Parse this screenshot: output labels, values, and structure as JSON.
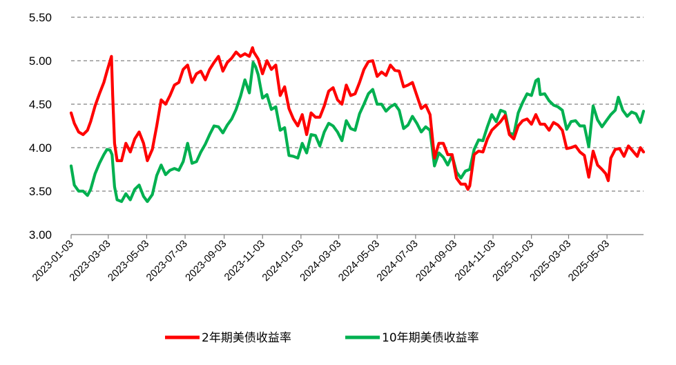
{
  "chart_data": {
    "type": "line",
    "title": "",
    "xlabel": "",
    "ylabel": "",
    "ylim": [
      3.0,
      5.5
    ],
    "y_ticks": [
      "3.00",
      "3.50",
      "4.00",
      "4.50",
      "5.00",
      "5.50"
    ],
    "x_ticks": [
      "2023-01-03",
      "2023-03-03",
      "2023-05-03",
      "2023-07-03",
      "2023-09-03",
      "2023-11-03",
      "2024-01-03",
      "2024-03-03",
      "2024-05-03",
      "2024-07-03",
      "2024-09-03",
      "2024-11-03",
      "2025-01-03",
      "2025-03-03",
      "2025-05-03"
    ],
    "x_range": [
      "2023-01-03",
      "2025-06-30"
    ],
    "grid": "horizontal dashed",
    "legend_position": "bottom-center",
    "series": [
      {
        "name": "2年期美债收益率",
        "color": "#ff0000",
        "points": [
          [
            "2023-01-03",
            4.4
          ],
          [
            "2023-01-08",
            4.28
          ],
          [
            "2023-01-15",
            4.18
          ],
          [
            "2023-01-22",
            4.15
          ],
          [
            "2023-01-29",
            4.2
          ],
          [
            "2023-02-03",
            4.3
          ],
          [
            "2023-02-10",
            4.48
          ],
          [
            "2023-02-17",
            4.62
          ],
          [
            "2023-02-24",
            4.75
          ],
          [
            "2023-03-01",
            4.88
          ],
          [
            "2023-03-06",
            5.0
          ],
          [
            "2023-03-08",
            5.05
          ],
          [
            "2023-03-10",
            4.6
          ],
          [
            "2023-03-13",
            4.05
          ],
          [
            "2023-03-17",
            3.85
          ],
          [
            "2023-03-24",
            3.85
          ],
          [
            "2023-03-31",
            4.05
          ],
          [
            "2023-04-07",
            3.95
          ],
          [
            "2023-04-14",
            4.1
          ],
          [
            "2023-04-21",
            4.18
          ],
          [
            "2023-04-28",
            4.05
          ],
          [
            "2023-05-04",
            3.85
          ],
          [
            "2023-05-12",
            3.98
          ],
          [
            "2023-05-19",
            4.25
          ],
          [
            "2023-05-26",
            4.55
          ],
          [
            "2023-06-02",
            4.5
          ],
          [
            "2023-06-09",
            4.6
          ],
          [
            "2023-06-16",
            4.72
          ],
          [
            "2023-06-23",
            4.75
          ],
          [
            "2023-06-30",
            4.9
          ],
          [
            "2023-07-07",
            4.95
          ],
          [
            "2023-07-14",
            4.75
          ],
          [
            "2023-07-21",
            4.85
          ],
          [
            "2023-07-28",
            4.88
          ],
          [
            "2023-08-04",
            4.78
          ],
          [
            "2023-08-11",
            4.9
          ],
          [
            "2023-08-18",
            4.98
          ],
          [
            "2023-08-25",
            5.05
          ],
          [
            "2023-09-01",
            4.88
          ],
          [
            "2023-09-08",
            4.98
          ],
          [
            "2023-09-15",
            5.03
          ],
          [
            "2023-09-22",
            5.1
          ],
          [
            "2023-09-29",
            5.05
          ],
          [
            "2023-10-06",
            5.08
          ],
          [
            "2023-10-13",
            5.05
          ],
          [
            "2023-10-18",
            5.15
          ],
          [
            "2023-10-20",
            5.1
          ],
          [
            "2023-10-27",
            5.02
          ],
          [
            "2023-11-03",
            4.85
          ],
          [
            "2023-11-10",
            5.0
          ],
          [
            "2023-11-17",
            4.9
          ],
          [
            "2023-11-24",
            4.95
          ],
          [
            "2023-12-01",
            4.6
          ],
          [
            "2023-12-08",
            4.7
          ],
          [
            "2023-12-15",
            4.45
          ],
          [
            "2023-12-22",
            4.33
          ],
          [
            "2023-12-29",
            4.25
          ],
          [
            "2024-01-05",
            4.38
          ],
          [
            "2024-01-12",
            4.15
          ],
          [
            "2024-01-19",
            4.4
          ],
          [
            "2024-01-26",
            4.35
          ],
          [
            "2024-02-02",
            4.35
          ],
          [
            "2024-02-09",
            4.48
          ],
          [
            "2024-02-16",
            4.65
          ],
          [
            "2024-02-23",
            4.69
          ],
          [
            "2024-03-01",
            4.55
          ],
          [
            "2024-03-08",
            4.5
          ],
          [
            "2024-03-15",
            4.72
          ],
          [
            "2024-03-22",
            4.6
          ],
          [
            "2024-03-29",
            4.62
          ],
          [
            "2024-04-05",
            4.75
          ],
          [
            "2024-04-12",
            4.9
          ],
          [
            "2024-04-19",
            4.99
          ],
          [
            "2024-04-26",
            5.0
          ],
          [
            "2024-05-03",
            4.82
          ],
          [
            "2024-05-10",
            4.87
          ],
          [
            "2024-05-17",
            4.83
          ],
          [
            "2024-05-24",
            4.95
          ],
          [
            "2024-05-31",
            4.89
          ],
          [
            "2024-06-07",
            4.88
          ],
          [
            "2024-06-14",
            4.7
          ],
          [
            "2024-06-21",
            4.72
          ],
          [
            "2024-06-28",
            4.75
          ],
          [
            "2024-07-05",
            4.6
          ],
          [
            "2024-07-12",
            4.45
          ],
          [
            "2024-07-19",
            4.49
          ],
          [
            "2024-07-26",
            4.38
          ],
          [
            "2024-08-02",
            3.88
          ],
          [
            "2024-08-09",
            4.05
          ],
          [
            "2024-08-16",
            4.05
          ],
          [
            "2024-08-23",
            3.92
          ],
          [
            "2024-08-30",
            3.92
          ],
          [
            "2024-09-06",
            3.65
          ],
          [
            "2024-09-13",
            3.58
          ],
          [
            "2024-09-20",
            3.58
          ],
          [
            "2024-09-24",
            3.52
          ],
          [
            "2024-09-27",
            3.56
          ],
          [
            "2024-10-04",
            3.92
          ],
          [
            "2024-10-11",
            3.96
          ],
          [
            "2024-10-18",
            3.95
          ],
          [
            "2024-10-25",
            4.1
          ],
          [
            "2024-11-01",
            4.2
          ],
          [
            "2024-11-08",
            4.25
          ],
          [
            "2024-11-15",
            4.3
          ],
          [
            "2024-11-22",
            4.37
          ],
          [
            "2024-11-29",
            4.15
          ],
          [
            "2024-12-06",
            4.1
          ],
          [
            "2024-12-13",
            4.25
          ],
          [
            "2024-12-20",
            4.31
          ],
          [
            "2024-12-27",
            4.33
          ],
          [
            "2025-01-03",
            4.27
          ],
          [
            "2025-01-10",
            4.38
          ],
          [
            "2025-01-17",
            4.27
          ],
          [
            "2025-01-24",
            4.27
          ],
          [
            "2025-01-31",
            4.2
          ],
          [
            "2025-02-07",
            4.29
          ],
          [
            "2025-02-14",
            4.26
          ],
          [
            "2025-02-21",
            4.2
          ],
          [
            "2025-02-28",
            3.99
          ],
          [
            "2025-03-07",
            4.0
          ],
          [
            "2025-03-14",
            4.02
          ],
          [
            "2025-03-21",
            3.95
          ],
          [
            "2025-03-28",
            3.91
          ],
          [
            "2025-04-04",
            3.66
          ],
          [
            "2025-04-11",
            3.96
          ],
          [
            "2025-04-18",
            3.8
          ],
          [
            "2025-04-25",
            3.75
          ],
          [
            "2025-05-01",
            3.7
          ],
          [
            "2025-05-05",
            3.62
          ],
          [
            "2025-05-09",
            3.88
          ],
          [
            "2025-05-16",
            3.98
          ],
          [
            "2025-05-23",
            3.99
          ],
          [
            "2025-05-30",
            3.9
          ],
          [
            "2025-06-06",
            4.02
          ],
          [
            "2025-06-13",
            3.96
          ],
          [
            "2025-06-20",
            3.9
          ],
          [
            "2025-06-25",
            4.0
          ],
          [
            "2025-06-30",
            3.95
          ]
        ]
      },
      {
        "name": "10年期美债收益率",
        "color": "#00b050",
        "points": [
          [
            "2023-01-03",
            3.79
          ],
          [
            "2023-01-08",
            3.57
          ],
          [
            "2023-01-15",
            3.5
          ],
          [
            "2023-01-22",
            3.5
          ],
          [
            "2023-01-29",
            3.45
          ],
          [
            "2023-02-03",
            3.52
          ],
          [
            "2023-02-10",
            3.7
          ],
          [
            "2023-02-17",
            3.82
          ],
          [
            "2023-02-24",
            3.92
          ],
          [
            "2023-03-01",
            3.98
          ],
          [
            "2023-03-06",
            3.97
          ],
          [
            "2023-03-09",
            3.92
          ],
          [
            "2023-03-13",
            3.55
          ],
          [
            "2023-03-17",
            3.4
          ],
          [
            "2023-03-24",
            3.38
          ],
          [
            "2023-03-31",
            3.47
          ],
          [
            "2023-04-07",
            3.4
          ],
          [
            "2023-04-14",
            3.52
          ],
          [
            "2023-04-21",
            3.57
          ],
          [
            "2023-04-28",
            3.44
          ],
          [
            "2023-05-04",
            3.38
          ],
          [
            "2023-05-12",
            3.46
          ],
          [
            "2023-05-19",
            3.68
          ],
          [
            "2023-05-26",
            3.8
          ],
          [
            "2023-06-02",
            3.69
          ],
          [
            "2023-06-09",
            3.74
          ],
          [
            "2023-06-16",
            3.76
          ],
          [
            "2023-06-23",
            3.74
          ],
          [
            "2023-06-30",
            3.84
          ],
          [
            "2023-07-07",
            4.05
          ],
          [
            "2023-07-14",
            3.82
          ],
          [
            "2023-07-21",
            3.84
          ],
          [
            "2023-07-28",
            3.95
          ],
          [
            "2023-08-04",
            4.04
          ],
          [
            "2023-08-11",
            4.15
          ],
          [
            "2023-08-18",
            4.25
          ],
          [
            "2023-08-25",
            4.24
          ],
          [
            "2023-09-01",
            4.17
          ],
          [
            "2023-09-08",
            4.26
          ],
          [
            "2023-09-15",
            4.33
          ],
          [
            "2023-09-22",
            4.44
          ],
          [
            "2023-09-29",
            4.59
          ],
          [
            "2023-10-06",
            4.78
          ],
          [
            "2023-10-13",
            4.63
          ],
          [
            "2023-10-19",
            4.98
          ],
          [
            "2023-10-23",
            4.93
          ],
          [
            "2023-10-27",
            4.84
          ],
          [
            "2023-11-03",
            4.57
          ],
          [
            "2023-11-10",
            4.61
          ],
          [
            "2023-11-17",
            4.44
          ],
          [
            "2023-11-24",
            4.47
          ],
          [
            "2023-12-01",
            4.2
          ],
          [
            "2023-12-08",
            4.23
          ],
          [
            "2023-12-15",
            3.91
          ],
          [
            "2023-12-22",
            3.9
          ],
          [
            "2023-12-29",
            3.88
          ],
          [
            "2024-01-05",
            4.05
          ],
          [
            "2024-01-12",
            3.94
          ],
          [
            "2024-01-19",
            4.15
          ],
          [
            "2024-01-26",
            4.14
          ],
          [
            "2024-02-02",
            4.02
          ],
          [
            "2024-02-09",
            4.18
          ],
          [
            "2024-02-16",
            4.28
          ],
          [
            "2024-02-23",
            4.25
          ],
          [
            "2024-03-01",
            4.18
          ],
          [
            "2024-03-08",
            4.08
          ],
          [
            "2024-03-15",
            4.31
          ],
          [
            "2024-03-22",
            4.22
          ],
          [
            "2024-03-29",
            4.2
          ],
          [
            "2024-04-05",
            4.39
          ],
          [
            "2024-04-12",
            4.5
          ],
          [
            "2024-04-19",
            4.62
          ],
          [
            "2024-04-26",
            4.67
          ],
          [
            "2024-05-03",
            4.5
          ],
          [
            "2024-05-10",
            4.5
          ],
          [
            "2024-05-17",
            4.42
          ],
          [
            "2024-05-24",
            4.47
          ],
          [
            "2024-05-31",
            4.5
          ],
          [
            "2024-06-07",
            4.43
          ],
          [
            "2024-06-14",
            4.22
          ],
          [
            "2024-06-21",
            4.26
          ],
          [
            "2024-06-28",
            4.36
          ],
          [
            "2024-07-05",
            4.28
          ],
          [
            "2024-07-12",
            4.18
          ],
          [
            "2024-07-19",
            4.24
          ],
          [
            "2024-07-26",
            4.2
          ],
          [
            "2024-08-02",
            3.79
          ],
          [
            "2024-08-09",
            3.94
          ],
          [
            "2024-08-16",
            3.89
          ],
          [
            "2024-08-23",
            3.8
          ],
          [
            "2024-08-30",
            3.91
          ],
          [
            "2024-09-06",
            3.72
          ],
          [
            "2024-09-13",
            3.65
          ],
          [
            "2024-09-20",
            3.73
          ],
          [
            "2024-09-27",
            3.75
          ],
          [
            "2024-10-04",
            3.98
          ],
          [
            "2024-10-11",
            4.09
          ],
          [
            "2024-10-18",
            4.08
          ],
          [
            "2024-10-25",
            4.24
          ],
          [
            "2024-11-01",
            4.38
          ],
          [
            "2024-11-08",
            4.3
          ],
          [
            "2024-11-15",
            4.43
          ],
          [
            "2024-11-22",
            4.41
          ],
          [
            "2024-11-29",
            4.17
          ],
          [
            "2024-12-06",
            4.15
          ],
          [
            "2024-12-13",
            4.4
          ],
          [
            "2024-12-20",
            4.52
          ],
          [
            "2024-12-27",
            4.62
          ],
          [
            "2025-01-03",
            4.6
          ],
          [
            "2025-01-10",
            4.77
          ],
          [
            "2025-01-14",
            4.79
          ],
          [
            "2025-01-17",
            4.61
          ],
          [
            "2025-01-24",
            4.62
          ],
          [
            "2025-01-31",
            4.54
          ],
          [
            "2025-02-07",
            4.49
          ],
          [
            "2025-02-14",
            4.47
          ],
          [
            "2025-02-21",
            4.43
          ],
          [
            "2025-02-28",
            4.21
          ],
          [
            "2025-03-07",
            4.3
          ],
          [
            "2025-03-14",
            4.31
          ],
          [
            "2025-03-21",
            4.25
          ],
          [
            "2025-03-28",
            4.25
          ],
          [
            "2025-04-04",
            4.01
          ],
          [
            "2025-04-11",
            4.48
          ],
          [
            "2025-04-18",
            4.32
          ],
          [
            "2025-04-25",
            4.24
          ],
          [
            "2025-05-02",
            4.31
          ],
          [
            "2025-05-09",
            4.38
          ],
          [
            "2025-05-16",
            4.43
          ],
          [
            "2025-05-21",
            4.58
          ],
          [
            "2025-05-28",
            4.43
          ],
          [
            "2025-06-04",
            4.36
          ],
          [
            "2025-06-11",
            4.41
          ],
          [
            "2025-06-18",
            4.39
          ],
          [
            "2025-06-25",
            4.29
          ],
          [
            "2025-06-30",
            4.42
          ]
        ]
      }
    ]
  }
}
